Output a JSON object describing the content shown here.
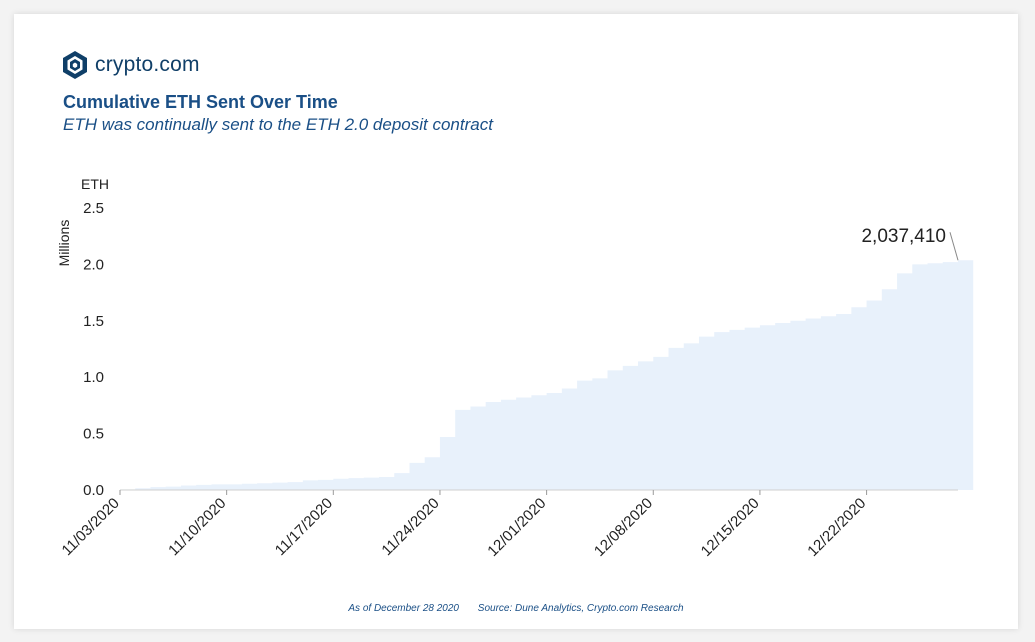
{
  "brand": {
    "name": "crypto.com",
    "logo_icon": "crypto-com-lion-shield-icon"
  },
  "header": {
    "title": "Cumulative ETH Sent Over Time",
    "subtitle": "ETH was continually sent to the ETH 2.0 deposit contract"
  },
  "footer": {
    "as_of": "As of December 28 2020",
    "source": "Source: Dune Analytics, Crypto.com Research"
  },
  "colors": {
    "fill": "#e8f1fb",
    "accent": "#1a4f86",
    "brand": "#103f68",
    "text": "#222222"
  },
  "chart_data": {
    "type": "area",
    "step": true,
    "title": "Cumulative ETH Sent Over Time",
    "subtitle": "ETH was continually sent to the ETH 2.0 deposit contract",
    "unit_label": "ETH",
    "ylabel": "Millions",
    "ylim": [
      0,
      2.5
    ],
    "yticks": [
      "0.0",
      "0.5",
      "1.0",
      "1.5",
      "2.0",
      "2.5"
    ],
    "xlim": [
      0,
      55
    ],
    "xticks": [
      {
        "x": 0,
        "label": "11/03/2020"
      },
      {
        "x": 7,
        "label": "11/10/2020"
      },
      {
        "x": 14,
        "label": "11/17/2020"
      },
      {
        "x": 21,
        "label": "11/24/2020"
      },
      {
        "x": 28,
        "label": "12/01/2020"
      },
      {
        "x": 35,
        "label": "12/08/2020"
      },
      {
        "x": 42,
        "label": "12/15/2020"
      },
      {
        "x": 49,
        "label": "12/22/2020"
      }
    ],
    "values": [
      0.005,
      0.015,
      0.025,
      0.03,
      0.04,
      0.045,
      0.05,
      0.05,
      0.055,
      0.06,
      0.065,
      0.07,
      0.085,
      0.09,
      0.1,
      0.105,
      0.11,
      0.115,
      0.15,
      0.24,
      0.29,
      0.47,
      0.71,
      0.74,
      0.78,
      0.8,
      0.82,
      0.84,
      0.86,
      0.9,
      0.97,
      0.99,
      1.06,
      1.1,
      1.14,
      1.18,
      1.26,
      1.3,
      1.36,
      1.4,
      1.42,
      1.44,
      1.46,
      1.48,
      1.5,
      1.52,
      1.54,
      1.56,
      1.62,
      1.68,
      1.78,
      1.92,
      2.0,
      2.01,
      2.02,
      2.037
    ],
    "annotation": {
      "label": "2,037,410",
      "value": 2037410,
      "at_x": 55
    }
  }
}
